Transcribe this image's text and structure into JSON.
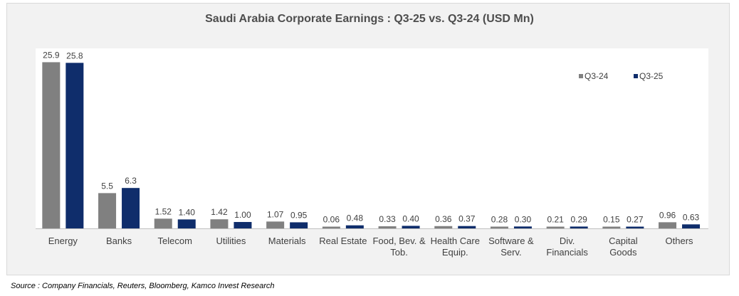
{
  "source": "Source : Company Financials, Reuters, Bloomberg, Kamco Invest Research",
  "colors": {
    "q3_24": "#808080",
    "q3_25": "#0f2d6b"
  },
  "chart_data": {
    "type": "bar",
    "title": "Saudi Arabia Corporate Earnings : Q3-25 vs. Q3-24 (USD Mn)",
    "xlabel": "",
    "ylabel": "",
    "ylim": [
      0,
      27.5
    ],
    "grid": false,
    "legend": "top-right",
    "categories": [
      [
        "Energy"
      ],
      [
        "Banks"
      ],
      [
        "Telecom"
      ],
      [
        "Utilities"
      ],
      [
        "Materials"
      ],
      [
        "Real Estate"
      ],
      [
        "Food, Bev. &",
        "Tob."
      ],
      [
        "Health Care",
        "Equip."
      ],
      [
        "Software &",
        "Serv."
      ],
      [
        "Div.",
        "Financials"
      ],
      [
        "Capital",
        "Goods"
      ],
      [
        "Others"
      ]
    ],
    "series": [
      {
        "name": "Q3-24",
        "values": [
          25.9,
          5.5,
          1.52,
          1.42,
          1.07,
          0.06,
          0.33,
          0.36,
          0.28,
          0.21,
          0.15,
          0.96
        ],
        "labels": [
          "25.9",
          "5.5",
          "1.52",
          "1.42",
          "1.07",
          "0.06",
          "0.33",
          "0.36",
          "0.28",
          "0.21",
          "0.15",
          "0.96"
        ]
      },
      {
        "name": "Q3-25",
        "values": [
          25.8,
          6.3,
          1.4,
          1.0,
          0.95,
          0.48,
          0.4,
          0.37,
          0.3,
          0.29,
          0.27,
          0.63
        ],
        "labels": [
          "25.8",
          "6.3",
          "1.40",
          "1.00",
          "0.95",
          "0.48",
          "0.40",
          "0.37",
          "0.30",
          "0.29",
          "0.27",
          "0.63"
        ]
      }
    ]
  }
}
